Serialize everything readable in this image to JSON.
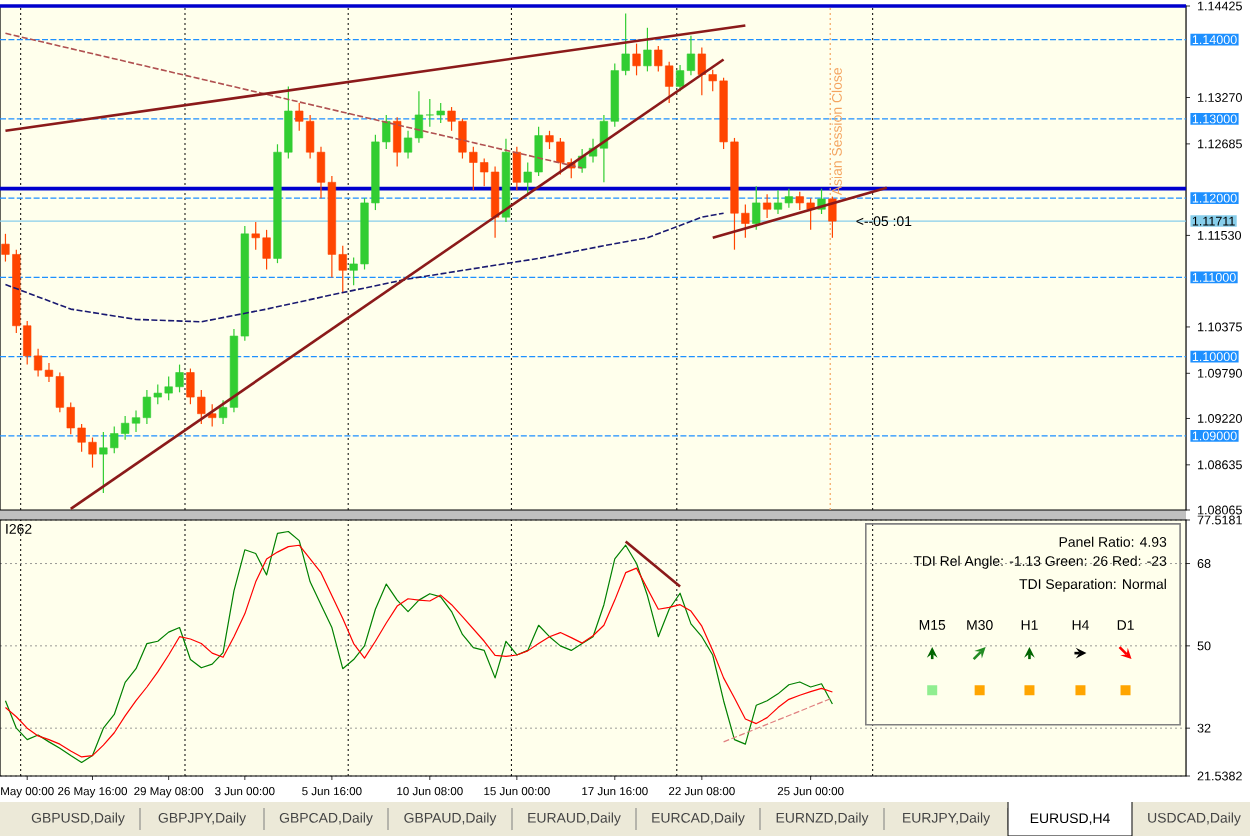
{
  "chart_data": [
    {
      "type": "candlestick",
      "categories": [
        null,
        null,
        null,
        null,
        null,
        null,
        null,
        null,
        null,
        null,
        null,
        null,
        null,
        null,
        null,
        null,
        null,
        null,
        null,
        null,
        null,
        null,
        null,
        null,
        null,
        null,
        null,
        null,
        null,
        null,
        null,
        null,
        null,
        null,
        null,
        null,
        null,
        null,
        null,
        null,
        null,
        null,
        null,
        null,
        null,
        null,
        null,
        null,
        null,
        null,
        null,
        null,
        null,
        null,
        null,
        null,
        null,
        null,
        null,
        null,
        null,
        null,
        null,
        null,
        null,
        null,
        null,
        null,
        null,
        null,
        null,
        null,
        null,
        null,
        null,
        null,
        null,
        null,
        null,
        null,
        null,
        null,
        null,
        null,
        null,
        null,
        null,
        null,
        null,
        null,
        null,
        null,
        null,
        null,
        null,
        null,
        null,
        null,
        null,
        null,
        null,
        null,
        null,
        null,
        null,
        null,
        null,
        null,
        null
      ],
      "ohlc": [
        [
          1.1142,
          1.1155,
          1.112,
          1.1129
        ],
        [
          1.1129,
          1.1135,
          1.103,
          1.1039
        ],
        [
          1.1039,
          1.1045,
          1.099,
          1.1001
        ],
        [
          1.1001,
          1.101,
          1.0975,
          1.0983
        ],
        [
          1.0983,
          1.0992,
          1.0968,
          1.0975
        ],
        [
          1.0975,
          1.098,
          1.093,
          1.0936
        ],
        [
          1.0936,
          1.0942,
          1.0902,
          1.091
        ],
        [
          1.091,
          1.0915,
          1.088,
          1.0892
        ],
        [
          1.0892,
          1.0898,
          1.086,
          1.0877
        ],
        [
          1.0877,
          1.0905,
          1.0828,
          1.0885
        ],
        [
          1.0885,
          1.0912,
          1.0878,
          1.0903
        ],
        [
          1.0903,
          1.0925,
          1.0895,
          1.0916
        ],
        [
          1.0916,
          1.0932,
          1.0905,
          1.0923
        ],
        [
          1.0923,
          1.0958,
          1.0915,
          1.0949
        ],
        [
          1.0949,
          1.0965,
          1.094,
          1.0954
        ],
        [
          1.0954,
          1.0975,
          1.0945,
          1.0962
        ],
        [
          1.0962,
          1.099,
          1.0955,
          1.098
        ],
        [
          1.098,
          1.0985,
          1.094,
          1.0949
        ],
        [
          1.0949,
          1.0958,
          1.0915,
          1.0928
        ],
        [
          1.0928,
          1.094,
          1.0912,
          1.0923
        ],
        [
          1.0923,
          1.0945,
          1.0915,
          1.0936
        ],
        [
          1.0936,
          1.1035,
          1.093,
          1.1026
        ],
        [
          1.1026,
          1.1165,
          1.102,
          1.1155
        ],
        [
          1.1155,
          1.117,
          1.1135,
          1.115
        ],
        [
          1.115,
          1.116,
          1.111,
          1.1124
        ],
        [
          1.1124,
          1.1268,
          1.1118,
          1.1258
        ],
        [
          1.1258,
          1.1341,
          1.125,
          1.131
        ],
        [
          1.131,
          1.132,
          1.1285,
          1.1297
        ],
        [
          1.1297,
          1.1305,
          1.125,
          1.1258
        ],
        [
          1.1258,
          1.1265,
          1.12,
          1.122
        ],
        [
          1.122,
          1.1228,
          1.11,
          1.1129
        ],
        [
          1.1129,
          1.114,
          1.108,
          1.1109
        ],
        [
          1.1109,
          1.1125,
          1.109,
          1.1117
        ],
        [
          1.1117,
          1.12,
          1.111,
          1.1194
        ],
        [
          1.1194,
          1.128,
          1.1185,
          1.1271
        ],
        [
          1.1271,
          1.1305,
          1.1262,
          1.1297
        ],
        [
          1.1297,
          1.1302,
          1.124,
          1.1258
        ],
        [
          1.1258,
          1.1285,
          1.125,
          1.1276
        ],
        [
          1.1276,
          1.1335,
          1.127,
          1.1305
        ],
        [
          1.1305,
          1.1325,
          1.129,
          1.1305
        ],
        [
          1.1305,
          1.132,
          1.1295,
          1.131
        ],
        [
          1.131,
          1.1315,
          1.1285,
          1.1297
        ],
        [
          1.1297,
          1.13,
          1.125,
          1.1258
        ],
        [
          1.1258,
          1.1265,
          1.121,
          1.1245
        ],
        [
          1.1245,
          1.125,
          1.1215,
          1.1233
        ],
        [
          1.1233,
          1.124,
          1.115,
          1.1176
        ],
        [
          1.1176,
          1.1275,
          1.117,
          1.1258
        ],
        [
          1.1258,
          1.1265,
          1.121,
          1.122
        ],
        [
          1.122,
          1.1245,
          1.1205,
          1.1233
        ],
        [
          1.1233,
          1.129,
          1.1228,
          1.1279
        ],
        [
          1.1279,
          1.1285,
          1.1262,
          1.1271
        ],
        [
          1.1271,
          1.1276,
          1.123,
          1.1245
        ],
        [
          1.1245,
          1.125,
          1.1225,
          1.1238
        ],
        [
          1.1238,
          1.1262,
          1.1232,
          1.1253
        ],
        [
          1.1253,
          1.1275,
          1.1245,
          1.1263
        ],
        [
          1.1263,
          1.1305,
          1.122,
          1.1297
        ],
        [
          1.1297,
          1.137,
          1.129,
          1.1361
        ],
        [
          1.1361,
          1.1433,
          1.1355,
          1.1382
        ],
        [
          1.1382,
          1.1395,
          1.1355,
          1.1367
        ],
        [
          1.1367,
          1.1415,
          1.136,
          1.1387
        ],
        [
          1.1387,
          1.1392,
          1.136,
          1.1367
        ],
        [
          1.1367,
          1.1372,
          1.132,
          1.1341
        ],
        [
          1.1341,
          1.1368,
          1.1335,
          1.1361
        ],
        [
          1.1361,
          1.1405,
          1.1355,
          1.1382
        ],
        [
          1.1382,
          1.139,
          1.133,
          1.1356
        ],
        [
          1.1356,
          1.1362,
          1.1335,
          1.1348
        ],
        [
          1.1348,
          1.1352,
          1.1262,
          1.1271
        ],
        [
          1.1271,
          1.1276,
          1.1135,
          1.1181
        ],
        [
          1.1181,
          1.1192,
          1.115,
          1.1168
        ],
        [
          1.1168,
          1.1215,
          1.116,
          1.1194
        ],
        [
          1.1194,
          1.1205,
          1.1175,
          1.1186
        ],
        [
          1.1186,
          1.121,
          1.118,
          1.1194
        ],
        [
          1.1194,
          1.1212,
          1.1188,
          1.1202
        ],
        [
          1.1202,
          1.1208,
          1.1185,
          1.1194
        ],
        [
          1.1194,
          1.12,
          1.116,
          1.1186
        ],
        [
          1.1186,
          1.1212,
          1.118,
          1.1199
        ],
        [
          1.1199,
          1.1202,
          1.115,
          1.1171
        ],
        null,
        null,
        null,
        null,
        null,
        null,
        null,
        null,
        null,
        null,
        null,
        null,
        null,
        null,
        null,
        null,
        null,
        null,
        null,
        null,
        null,
        null,
        null,
        null,
        null,
        null,
        null,
        null,
        null,
        null,
        null,
        null
      ],
      "series": [
        {
          "type": "line",
          "values": [
            1.1091,
            null,
            null,
            null,
            null,
            null,
            1.106,
            null,
            null,
            null,
            null,
            null,
            1.1047,
            null,
            null,
            null,
            null,
            null,
            1.1044,
            null,
            null,
            null,
            null,
            null,
            1.106,
            null,
            null,
            null,
            null,
            null,
            1.1078,
            null,
            null,
            null,
            null,
            null,
            null,
            1.1098,
            null,
            null,
            null,
            null,
            null,
            1.1111,
            null,
            null,
            null,
            null,
            null,
            1.1124,
            null,
            null,
            null,
            null,
            null,
            1.114,
            null,
            null,
            null,
            1.115,
            null,
            null,
            null,
            null,
            1.1176,
            null,
            1.1181,
            null,
            null,
            null,
            null,
            null,
            null,
            null,
            null,
            null,
            null,
            null,
            null,
            null,
            null,
            null,
            null,
            null,
            null,
            null,
            null,
            null,
            null,
            null,
            null,
            null,
            null,
            null,
            null,
            null,
            null,
            null,
            null,
            null,
            null,
            null,
            null,
            null,
            null,
            null,
            null,
            null,
            null
          ],
          "color": "#191970",
          "line_style": "dashed"
        },
        {
          "type": "line",
          "values": [
            1.1408,
            null,
            null,
            null,
            null,
            null,
            null,
            null,
            null,
            null,
            null,
            null,
            null,
            null,
            null,
            null,
            null,
            null,
            null,
            null,
            null,
            null,
            null,
            null,
            null,
            null,
            null,
            null,
            null,
            null,
            null,
            null,
            null,
            null,
            null,
            null,
            null,
            null,
            null,
            null,
            null,
            null,
            null,
            null,
            null,
            null,
            null,
            null,
            null,
            null,
            null,
            null,
            null,
            1.1238,
            null,
            null,
            null,
            null,
            null,
            null,
            null,
            null,
            null,
            null,
            null,
            null,
            null,
            null,
            null,
            null,
            null,
            null,
            null,
            null,
            null,
            null,
            null,
            null,
            null,
            null,
            null,
            null,
            null,
            null,
            null,
            null,
            null,
            null,
            null,
            null,
            null,
            null,
            null,
            null,
            null,
            null,
            null,
            null,
            null,
            null,
            null,
            null,
            null,
            null,
            null,
            null,
            null,
            null,
            null
          ],
          "color": "#b05050",
          "line_style": "dashed"
        },
        {
          "type": "line",
          "values": [
            1.1285,
            null,
            null,
            null,
            null,
            null,
            null,
            null,
            null,
            null,
            null,
            null,
            null,
            null,
            null,
            null,
            null,
            null,
            null,
            null,
            null,
            null,
            null,
            null,
            null,
            null,
            null,
            null,
            null,
            null,
            null,
            null,
            null,
            null,
            null,
            null,
            null,
            null,
            null,
            null,
            null,
            null,
            null,
            null,
            null,
            null,
            null,
            null,
            null,
            null,
            null,
            null,
            null,
            null,
            null,
            null,
            null,
            null,
            null,
            null,
            null,
            null,
            null,
            null,
            null,
            null,
            null,
            null,
            1.1418,
            null,
            null,
            null,
            null,
            null,
            null,
            null,
            null,
            null,
            null,
            null,
            null,
            null,
            null,
            null,
            null,
            null,
            null,
            null,
            null,
            null,
            null,
            null,
            null,
            null,
            null,
            null,
            null,
            null,
            null,
            null,
            null,
            null,
            null,
            null,
            null,
            null,
            null,
            null,
            null
          ],
          "color": "#8b1a1a",
          "line_style": "solid"
        },
        {
          "type": "line",
          "values": [
            null,
            null,
            null,
            null,
            null,
            null,
            1.0808,
            null,
            null,
            null,
            null,
            null,
            null,
            null,
            null,
            null,
            null,
            null,
            null,
            null,
            null,
            null,
            null,
            null,
            null,
            null,
            null,
            null,
            null,
            null,
            null,
            null,
            null,
            null,
            null,
            null,
            null,
            null,
            null,
            null,
            null,
            null,
            null,
            null,
            null,
            null,
            null,
            null,
            null,
            null,
            null,
            null,
            null,
            null,
            null,
            null,
            null,
            null,
            null,
            null,
            null,
            null,
            null,
            null,
            null,
            null,
            1.1375,
            null,
            null,
            null,
            null,
            null,
            null,
            null,
            null,
            null,
            null,
            null,
            null,
            null,
            null,
            null,
            null,
            null,
            null,
            null,
            null,
            null,
            null,
            null,
            null,
            null,
            null,
            null,
            null,
            null,
            null,
            null,
            null,
            null,
            null,
            null,
            null,
            null,
            null,
            null,
            null,
            null,
            null
          ],
          "color": "#8b1a1a",
          "line_style": "solid"
        },
        {
          "type": "line",
          "values": [
            null,
            null,
            null,
            null,
            null,
            null,
            null,
            null,
            null,
            null,
            null,
            null,
            null,
            null,
            null,
            null,
            null,
            null,
            null,
            null,
            null,
            null,
            null,
            null,
            null,
            null,
            null,
            null,
            null,
            null,
            null,
            null,
            null,
            null,
            null,
            null,
            null,
            null,
            null,
            null,
            null,
            null,
            null,
            null,
            null,
            null,
            null,
            null,
            null,
            null,
            null,
            null,
            null,
            null,
            null,
            null,
            null,
            null,
            null,
            null,
            null,
            null,
            null,
            null,
            null,
            1.115,
            null,
            null,
            null,
            null,
            null,
            null,
            null,
            null,
            null,
            null,
            null,
            null,
            null,
            null,
            null,
            1.1213,
            null,
            null,
            null,
            null,
            null,
            null,
            null,
            null,
            null,
            null,
            null,
            null,
            null,
            null,
            null,
            null,
            null,
            null,
            null,
            null,
            null,
            null,
            null,
            null,
            null,
            null,
            null
          ],
          "color": "#8b1a1a",
          "line_style": "solid"
        }
      ],
      "ylim": [
        1.08065,
        1.14425
      ],
      "yticks": [
        1.14425,
        {
          "value": 1.1327,
          "label": "1.13270"
        },
        1.12685,
        {
          "value": 1.1153,
          "label": "1.11530"
        },
        1.10375,
        {
          "value": 1.0979,
          "label": "1.09790"
        },
        {
          "value": 1.0922,
          "label": "1.09220"
        },
        1.08635,
        1.08065
      ],
      "ref_lines": [
        {
          "axis": "y",
          "value": 1.14,
          "label": "1.14000",
          "color": "#1e90ff",
          "line_style": "dashed"
        },
        {
          "axis": "y",
          "value": 1.13,
          "label": "1.13000",
          "color": "#1e90ff",
          "line_style": "dashed"
        },
        {
          "axis": "y",
          "value": 1.12,
          "label": "1.12000",
          "color": "#1e90ff",
          "line_style": "dashed"
        },
        {
          "axis": "y",
          "value": 1.11,
          "label": "1.11000",
          "color": "#1e90ff",
          "line_style": "dashed"
        },
        {
          "axis": "y",
          "value": 1.1,
          "label": "1.10000",
          "color": "#1e90ff",
          "line_style": "dashed"
        },
        {
          "axis": "y",
          "value": 1.09,
          "label": "1.09000",
          "color": "#1e90ff",
          "line_style": "dashed"
        },
        {
          "axis": "y",
          "value": 1.11711,
          "label": "1.11711",
          "color": "#87ceeb",
          "line_style": "solid"
        },
        {
          "axis": "y",
          "value": 1.14425,
          "color": "#0000cd",
          "line_style": "solid"
        },
        {
          "axis": "y",
          "value": 1.1212,
          "color": "#0000cd",
          "line_style": "solid"
        }
      ],
      "annotations": [
        "<--05 :01",
        "Asian Session Close"
      ],
      "tick_labels": "y"
    },
    {
      "type": "line",
      "categories": [
        null,
        null,
        "May 00:00",
        null,
        null,
        null,
        null,
        null,
        "26 May 16:00",
        null,
        null,
        null,
        null,
        null,
        null,
        "29 May 08:00",
        null,
        null,
        null,
        null,
        null,
        null,
        "3 Jun 00:00",
        null,
        null,
        null,
        null,
        null,
        null,
        null,
        "5 Jun 16:00",
        null,
        null,
        null,
        null,
        null,
        null,
        null,
        null,
        "10 Jun 08:00",
        null,
        null,
        null,
        null,
        null,
        null,
        null,
        "15 Jun 00:00",
        null,
        null,
        null,
        null,
        null,
        null,
        null,
        null,
        "17 Jun 16:00",
        null,
        null,
        null,
        null,
        null,
        null,
        null,
        "22 Jun 08:00",
        null,
        null,
        null,
        null,
        null,
        null,
        null,
        null,
        null,
        "25 Jun 00:00",
        null,
        null,
        null,
        null,
        null,
        null,
        null,
        null,
        null,
        null,
        null,
        null,
        null,
        null,
        null,
        null,
        null,
        null,
        null,
        null,
        null,
        null,
        null,
        null,
        null,
        null,
        null,
        null,
        null,
        null,
        null,
        null,
        null,
        null
      ],
      "series": [
        {
          "values": [
            38,
            32,
            29.5,
            30.5,
            29,
            27.6,
            26,
            24.5,
            26,
            32,
            35,
            42,
            45,
            50.5,
            51,
            53,
            54,
            47,
            45.2,
            46,
            48.5,
            62,
            71,
            70.2,
            65.5,
            74.6,
            75,
            73,
            64,
            59,
            54,
            45,
            47,
            50,
            58,
            63.5,
            60,
            57.5,
            60,
            61.4,
            60.7,
            57.5,
            52.5,
            49.6,
            49,
            43,
            51,
            48,
            49,
            54.5,
            52,
            50,
            49,
            50.5,
            52,
            59,
            69,
            72,
            68,
            61,
            52,
            58,
            61.5,
            54.8,
            52,
            48,
            38,
            29.5,
            28.5,
            37,
            38,
            39.5,
            41.5,
            42.1,
            41,
            41.7,
            37.3,
            null,
            null,
            null,
            null,
            null,
            null,
            null,
            null,
            null,
            null,
            null,
            null,
            null,
            null,
            null,
            null,
            null,
            null,
            null,
            null,
            null,
            null,
            null,
            null,
            null,
            null,
            null,
            null,
            null,
            null,
            null,
            null
          ],
          "color": "#008000",
          "line_style": "solid"
        },
        {
          "values": [
            36.5,
            34.5,
            32,
            30.3,
            29.5,
            28.5,
            27,
            25.7,
            26,
            28.3,
            31,
            34.7,
            38,
            41,
            44.3,
            48,
            52,
            51.5,
            50.5,
            48.4,
            47.5,
            52,
            57,
            64,
            69,
            70.5,
            71.7,
            72,
            69,
            66,
            61,
            56,
            50.5,
            47.3,
            51,
            55,
            58.7,
            60.3,
            60,
            59.8,
            61.1,
            59,
            56.4,
            53.7,
            51,
            47.9,
            47.7,
            48,
            48.9,
            50.5,
            52,
            52.9,
            51.8,
            50.6,
            52.2,
            54.5,
            60,
            66,
            67,
            62.5,
            58,
            58.4,
            59,
            57.6,
            54.3,
            49,
            43,
            38.6,
            34,
            33,
            34.3,
            36.5,
            38.3,
            39.2,
            40,
            40.7,
            39.9,
            null,
            null,
            null,
            null,
            null,
            null,
            null,
            null,
            null,
            null,
            null,
            null,
            null,
            null,
            null,
            null,
            null,
            null,
            null,
            null,
            null,
            null,
            null,
            null,
            null,
            null,
            null,
            null,
            null,
            null,
            null,
            null
          ],
          "color": "#ff0000",
          "line_style": "solid"
        },
        {
          "values": [
            null,
            null,
            null,
            null,
            null,
            null,
            null,
            null,
            null,
            null,
            null,
            null,
            null,
            null,
            null,
            null,
            null,
            null,
            null,
            null,
            null,
            null,
            null,
            null,
            null,
            null,
            null,
            null,
            null,
            null,
            null,
            null,
            null,
            null,
            null,
            null,
            null,
            null,
            null,
            null,
            null,
            null,
            null,
            null,
            null,
            null,
            null,
            null,
            null,
            null,
            null,
            null,
            null,
            null,
            null,
            null,
            null,
            72.8,
            null,
            null,
            null,
            null,
            63.0,
            null,
            null,
            null,
            null,
            null,
            null,
            null,
            null,
            null,
            null,
            null,
            null,
            null,
            null,
            null,
            null,
            null,
            null,
            null,
            null,
            null,
            null,
            null,
            null,
            null,
            null,
            null,
            null,
            null,
            null,
            null,
            null,
            null,
            null,
            null,
            null,
            null,
            null,
            null,
            null,
            null,
            null,
            null,
            null,
            null,
            null
          ],
          "color": "#8b1a1a",
          "line_style": "solid"
        },
        {
          "values": [
            null,
            null,
            null,
            null,
            null,
            null,
            null,
            null,
            null,
            null,
            null,
            null,
            null,
            null,
            null,
            null,
            null,
            null,
            null,
            null,
            null,
            null,
            null,
            null,
            null,
            null,
            null,
            null,
            null,
            null,
            null,
            null,
            null,
            null,
            null,
            null,
            null,
            null,
            null,
            null,
            null,
            null,
            null,
            null,
            null,
            null,
            null,
            null,
            null,
            null,
            null,
            null,
            null,
            null,
            null,
            null,
            null,
            null,
            null,
            null,
            null,
            null,
            null,
            null,
            null,
            null,
            29.0,
            null,
            null,
            null,
            null,
            null,
            null,
            null,
            null,
            null,
            38.6,
            null,
            null,
            null,
            null,
            null,
            null,
            null,
            null,
            null,
            null,
            null,
            null,
            null,
            null,
            null,
            null,
            null,
            null,
            null,
            null,
            null,
            null,
            null,
            null,
            null,
            null,
            null,
            null,
            null,
            null,
            null,
            null
          ],
          "color": "#e08080",
          "line_style": "dashed"
        }
      ],
      "ylim": [
        21.5382,
        77.5181
      ],
      "yticks": [
        77.5181,
        68,
        50,
        32,
        21.5382
      ],
      "grid": "y",
      "annotations": [
        "I262",
        "Panel Ratio: 4.93",
        "TDI Rel Angle: -1.13 Green: 26 Red: -23",
        "TDI Separation: Normal",
        "M15",
        "M30",
        "H1",
        "H4",
        "D1"
      ]
    },
    {
      "type": "other",
      "annotations": [
        "GBPUSD,Daily",
        "GBPJPY,Daily",
        "GBPCAD,Daily",
        "GBPAUD,Daily",
        "EURAUD,Daily",
        "EURCAD,Daily",
        "EURNZD,Daily",
        "EURJPY,Daily",
        "EURUSD,H4",
        "USDCAD,Daily"
      ]
    }
  ]
}
